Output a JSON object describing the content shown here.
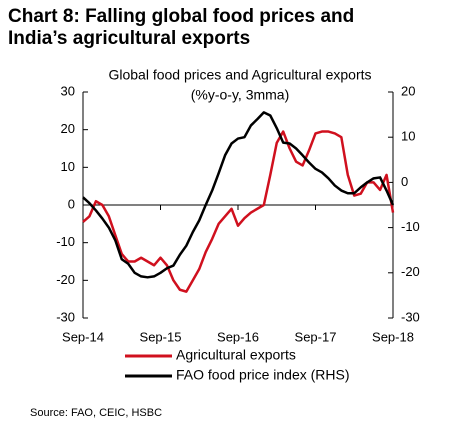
{
  "chart_data": {
    "type": "line",
    "title": "Chart 8: Falling global food prices and India’s agricultural exports",
    "subtitle": "Global food prices and Agricultural exports",
    "y_label": "(%y-o-y, 3mma)",
    "source": "Source: FAO, CEIC, HSBC",
    "categories": [
      "Sep-14",
      null,
      null,
      null,
      null,
      null,
      null,
      null,
      null,
      null,
      null,
      null,
      "Sep-15",
      null,
      null,
      null,
      null,
      null,
      null,
      null,
      null,
      null,
      null,
      null,
      "Sep-16",
      null,
      null,
      null,
      null,
      null,
      null,
      null,
      null,
      null,
      null,
      null,
      "Sep-17",
      null,
      null,
      null,
      null,
      null,
      null,
      null,
      null,
      null,
      null,
      null,
      "Sep-18"
    ],
    "ylim": [
      -30,
      30
    ],
    "yticks": [
      30,
      20,
      10,
      0,
      -10,
      -20,
      -30
    ],
    "y2lim": [
      -30,
      20
    ],
    "y2ticks": [
      20,
      10,
      0,
      -10,
      -20,
      -30
    ],
    "series": [
      {
        "name": "Agricultural exports",
        "color": "#d0101e",
        "values": [
          -4.5,
          -3,
          1,
          0,
          -3,
          -8,
          -13,
          -15,
          -15,
          -14,
          -15,
          -16,
          -14,
          -16,
          -20,
          -22.5,
          -23,
          -20,
          -17,
          -12.5,
          -9,
          -5,
          -3,
          -1,
          -5.5,
          -3.5,
          -2,
          -1,
          0,
          8,
          16.5,
          19.5,
          15,
          11.5,
          10.5,
          14.5,
          19,
          19.5,
          19.5,
          19,
          18,
          8,
          2.5,
          3,
          6,
          6,
          4,
          8,
          -2
        ]
      },
      {
        "name": "FAO food price index (RHS)",
        "color": "#000000",
        "axis": "y2",
        "values": [
          -3.3,
          -4.6,
          -6.2,
          -8,
          -10,
          -12.8,
          -17,
          -18,
          -20,
          -20.8,
          -21,
          -20.8,
          -20,
          -19,
          -18.4,
          -16,
          -14,
          -11,
          -8.4,
          -5,
          -1.8,
          2,
          6,
          8.6,
          9.7,
          10,
          12.6,
          14,
          15.5,
          14.8,
          12,
          8.8,
          8.6,
          7.5,
          6,
          4.4,
          3,
          2.2,
          0.9,
          -0.7,
          -1.8,
          -2.4,
          -2.4,
          -1.1,
          0,
          0.9,
          1.1,
          -1.8,
          -5
        ]
      }
    ]
  }
}
